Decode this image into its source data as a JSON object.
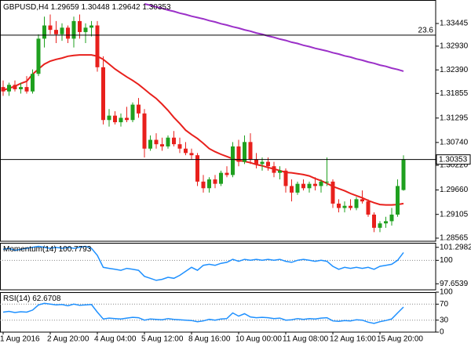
{
  "chart_data": [
    {
      "type": "candlestick",
      "title": "GBPUSD,H4",
      "categories": [
        "1 Aug 2016",
        null,
        null,
        null,
        null,
        null,
        null,
        null,
        "2 Aug 20:00",
        null,
        null,
        null,
        null,
        null,
        null,
        null,
        "4 Aug 04:00",
        null,
        null,
        null,
        null,
        null,
        null,
        null,
        "5 Aug 12:00",
        null,
        null,
        null,
        null,
        null,
        null,
        null,
        "8 Aug 16:00",
        null,
        null,
        null,
        null,
        null,
        null,
        null,
        "10 Aug 00:00",
        null,
        null,
        null,
        null,
        null,
        null,
        null,
        "11 Aug 08:00",
        null,
        null,
        null,
        null,
        null,
        null,
        null,
        "12 Aug 16:00",
        null,
        null,
        null,
        null,
        null,
        null,
        null,
        "15 Aug 20:00",
        null,
        null,
        null,
        null
      ],
      "open": [
        1.32,
        1.319,
        1.3205,
        1.3195,
        1.32,
        1.319,
        1.323,
        1.331,
        1.334,
        1.333,
        1.332,
        1.3335,
        1.331,
        1.335,
        1.3325,
        1.3335,
        1.334,
        1.3245,
        1.3125,
        1.3135,
        1.312,
        1.313,
        1.3125,
        1.316,
        1.314,
        1.306,
        1.308,
        1.307,
        1.3065,
        1.3085,
        1.307,
        1.306,
        1.305,
        1.3045,
        1.2985,
        1.297,
        1.299,
        1.298,
        1.3005,
        1.3,
        1.3065,
        1.303,
        1.3075,
        1.3035,
        1.3025,
        1.303,
        1.302,
        1.3005,
        1.301,
        1.2975,
        1.296,
        1.298,
        1.297,
        1.298,
        1.2975,
        1.2985,
        1.2985,
        1.2935,
        1.2925,
        1.293,
        1.2925,
        1.2945,
        1.294,
        1.291,
        1.288,
        1.289,
        1.2895,
        1.291,
        1.29659
      ],
      "high": [
        1.3215,
        1.321,
        1.3215,
        1.321,
        1.3225,
        1.324,
        1.332,
        1.336,
        1.3365,
        1.335,
        1.3345,
        1.334,
        1.336,
        1.3365,
        1.3345,
        1.335,
        1.335,
        1.327,
        1.315,
        1.3145,
        1.314,
        1.3155,
        1.3165,
        1.3175,
        1.315,
        1.309,
        1.3095,
        1.3085,
        1.309,
        1.31,
        1.3085,
        1.3075,
        1.306,
        1.305,
        1.3,
        1.2995,
        1.3,
        1.301,
        1.302,
        1.3075,
        1.308,
        1.309,
        1.3095,
        1.305,
        1.304,
        1.304,
        1.303,
        1.302,
        1.3015,
        1.299,
        1.2985,
        1.299,
        1.2985,
        1.2995,
        1.299,
        1.304,
        1.299,
        1.2945,
        1.294,
        1.2945,
        1.295,
        1.2965,
        1.2945,
        1.2915,
        1.2895,
        1.2905,
        1.2925,
        1.299,
        1.30448
      ],
      "low": [
        1.318,
        1.318,
        1.319,
        1.3185,
        1.3185,
        1.3185,
        1.3225,
        1.329,
        1.332,
        1.33,
        1.3305,
        1.33,
        1.329,
        1.331,
        1.33,
        1.3315,
        1.3235,
        1.3115,
        1.311,
        1.3115,
        1.311,
        1.312,
        1.312,
        1.313,
        1.304,
        1.3055,
        1.306,
        1.3055,
        1.306,
        1.3065,
        1.305,
        1.3045,
        1.3035,
        1.2975,
        1.296,
        1.296,
        1.297,
        1.2975,
        1.2995,
        1.2995,
        1.302,
        1.3025,
        1.3025,
        1.3015,
        1.301,
        1.301,
        1.2995,
        1.299,
        1.296,
        1.294,
        1.2955,
        1.2965,
        1.296,
        1.2965,
        1.296,
        1.2975,
        1.2925,
        1.2915,
        1.2915,
        1.292,
        1.292,
        1.2935,
        1.2905,
        1.287,
        1.287,
        1.288,
        1.2885,
        1.2905,
        1.29642
      ],
      "close": [
        1.319,
        1.3205,
        1.3195,
        1.32,
        1.319,
        1.323,
        1.331,
        1.334,
        1.333,
        1.332,
        1.3335,
        1.331,
        1.335,
        1.3325,
        1.3335,
        1.334,
        1.3245,
        1.3125,
        1.3135,
        1.312,
        1.313,
        1.3125,
        1.316,
        1.314,
        1.306,
        1.308,
        1.307,
        1.3065,
        1.3085,
        1.307,
        1.306,
        1.305,
        1.3045,
        1.2985,
        1.297,
        1.299,
        1.298,
        1.3005,
        1.3,
        1.3065,
        1.303,
        1.3075,
        1.3035,
        1.3025,
        1.303,
        1.302,
        1.3005,
        1.301,
        1.2975,
        1.296,
        1.298,
        1.297,
        1.298,
        1.2975,
        1.2985,
        1.2985,
        1.2935,
        1.2925,
        1.293,
        1.2925,
        1.2945,
        1.294,
        1.291,
        1.288,
        1.289,
        1.2895,
        1.291,
        1.2975,
        1.30353
      ],
      "up_color": "#1fa01f",
      "down_color": "#e8201c",
      "overlays": [
        {
          "color": "#e8201c",
          "values": [
            1.3193,
            1.3197,
            1.3202,
            1.3208,
            1.3213,
            1.3229,
            1.3241,
            1.3252,
            1.3259,
            1.3263,
            1.3266,
            1.327,
            1.3272,
            1.3273,
            1.3273,
            1.3273,
            1.327,
            1.3263,
            1.3252,
            1.3241,
            1.3232,
            1.3223,
            1.3215,
            1.3206,
            1.3195,
            1.3184,
            1.3174,
            1.3161,
            1.3147,
            1.3131,
            1.3117,
            1.3102,
            1.3092,
            1.3083,
            1.3072,
            1.306,
            1.3053,
            1.3047,
            1.3042,
            1.3037,
            1.3033,
            1.3031,
            1.3028,
            1.3024,
            1.3021,
            1.3017,
            1.3014,
            1.301,
            1.3006,
            1.3005,
            1.3003,
            1.3001,
            1.2998,
            1.2992,
            1.2987,
            1.2981,
            1.2974,
            1.2969,
            1.2964,
            1.2958,
            1.2953,
            1.2948,
            1.2942,
            1.2937,
            1.2933,
            1.2932,
            1.2932,
            1.2933,
            1.2935
          ]
        },
        {
          "color": "#9b30c8",
          "values": [
            null,
            null,
            null,
            null,
            null,
            null,
            null,
            null,
            null,
            null,
            null,
            null,
            null,
            null,
            null,
            null,
            null,
            null,
            null,
            null,
            null,
            null,
            null,
            null,
            1.3389,
            1.3386,
            1.3382,
            1.3379,
            1.3375,
            1.3372,
            1.3368,
            1.3365,
            1.3361,
            1.3358,
            1.3355,
            1.3351,
            1.3348,
            1.3344,
            1.3341,
            1.3337,
            1.3334,
            1.333,
            1.3327,
            1.3323,
            1.332,
            1.3316,
            1.3313,
            1.3309,
            1.3306,
            1.3302,
            1.3299,
            1.3295,
            1.3292,
            1.3288,
            1.3285,
            1.3282,
            1.3278,
            1.3275,
            1.3271,
            1.3268,
            1.3264,
            1.3261,
            1.3257,
            1.3254,
            1.325,
            1.3247,
            1.3243,
            1.324,
            1.3236
          ]
        }
      ],
      "fib_level": {
        "value": 1.3318,
        "label": "23.6"
      },
      "ylim": [
        1.28494,
        1.33979
      ],
      "yticks": [
        1.33445,
        {
          "value": 1.3293,
          "label": "1.32930"
        },
        {
          "value": 1.3239,
          "label": "1.32390"
        },
        1.31855,
        1.31295,
        {
          "value": 1.3074,
          "label": "1.30740"
        },
        {
          "value": 1.3022,
          "label": "1.30220"
        },
        {
          "value": 1.2966,
          "label": "1.29660"
        },
        1.29105,
        1.28565
      ]
    },
    {
      "type": "line",
      "title": "Momentum(14)",
      "color": "#1e90ff",
      "values": [
        101.1,
        101.2,
        101.0,
        101.1,
        101.2,
        101.3,
        101.4,
        101.3,
        101.2,
        101.3,
        101.2,
        101.3,
        101.2,
        101.3,
        101.4,
        101.2,
        100.5,
        99.3,
        99.2,
        99.1,
        99.0,
        99.2,
        99.1,
        99.0,
        98.4,
        98.2,
        98.0,
        98.1,
        98.3,
        98.2,
        98.5,
        98.9,
        99.3,
        99.0,
        99.5,
        99.6,
        99.5,
        99.7,
        99.8,
        100.1,
        99.9,
        100.1,
        100.0,
        100.1,
        100.0,
        100.1,
        100.0,
        100.1,
        99.9,
        99.8,
        100.0,
        100.1,
        100.0,
        99.9,
        100.0,
        99.9,
        99.4,
        99.1,
        99.3,
        99.2,
        99.3,
        99.2,
        99.3,
        99.1,
        99.4,
        99.5,
        99.6,
        100.0,
        100.7793
      ],
      "ylim": [
        97.05,
        101.75
      ],
      "yticks": [
        97.6539,
        100,
        101.2982
      ],
      "levels": [
        100
      ]
    },
    {
      "type": "line",
      "title": "RSI(14)",
      "color": "#1e90ff",
      "values": [
        50,
        52,
        49,
        51,
        50,
        55,
        68,
        72,
        70,
        68,
        69,
        66,
        70,
        67,
        68,
        69,
        50,
        33,
        35,
        34,
        33,
        35,
        37,
        36,
        30,
        33,
        32,
        31,
        34,
        32,
        31,
        30,
        29,
        26,
        28,
        32,
        30,
        33,
        34,
        48,
        40,
        46,
        38,
        36,
        37,
        36,
        34,
        35,
        30,
        31,
        34,
        32,
        34,
        33,
        35,
        36,
        28,
        27,
        29,
        28,
        31,
        30,
        25,
        22,
        26,
        29,
        33,
        48,
        62.6708
      ],
      "ylim": [
        0,
        100
      ],
      "yticks": [
        0,
        30,
        70,
        100
      ],
      "levels": [
        70,
        30
      ]
    }
  ]
}
